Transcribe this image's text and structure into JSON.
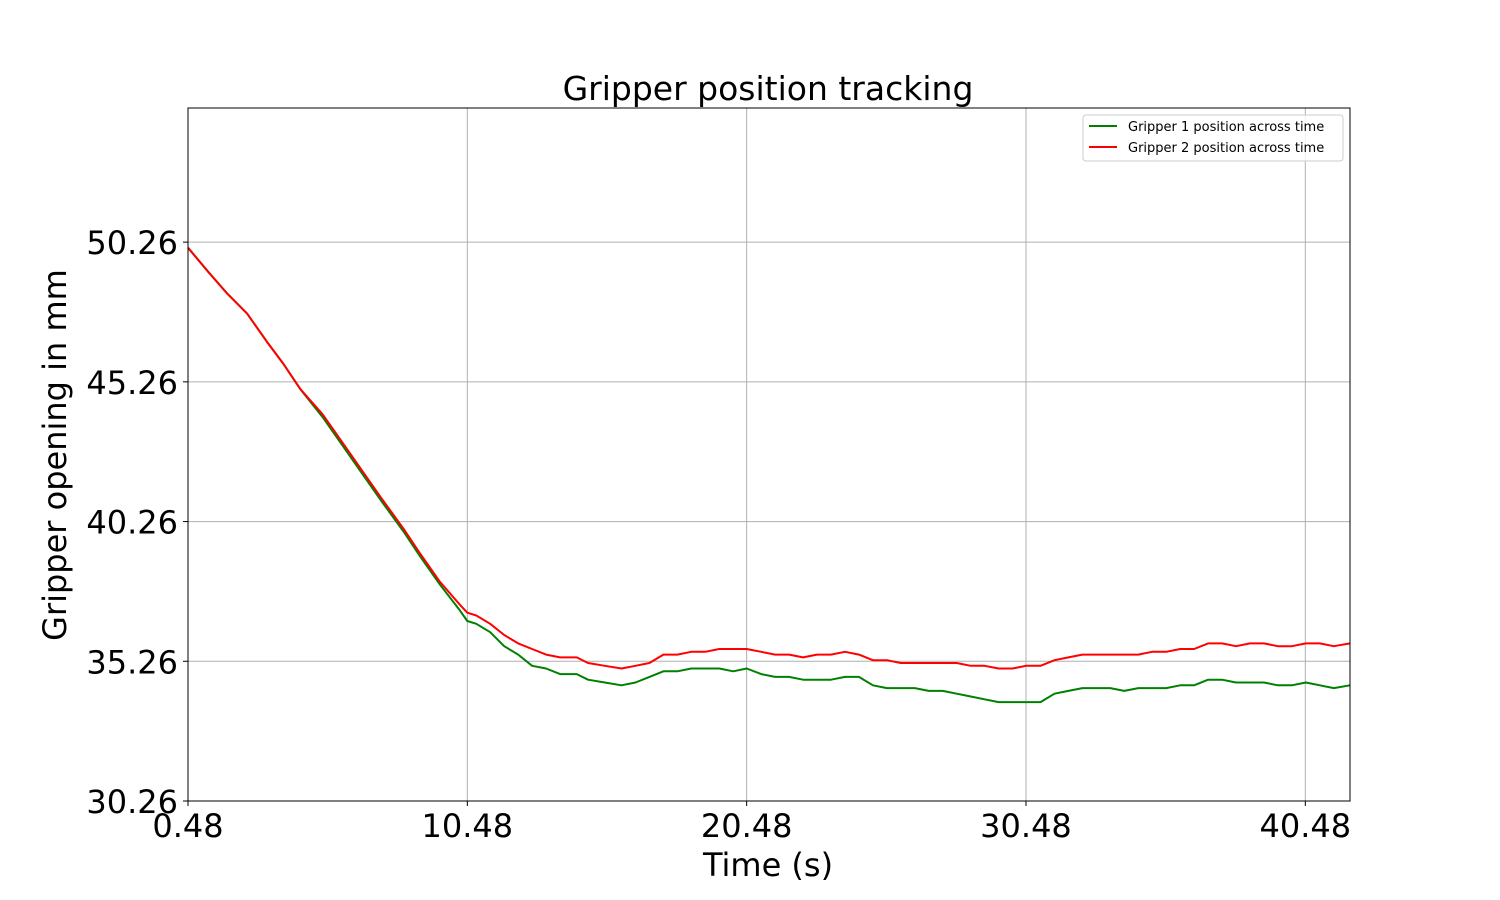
{
  "chart_data": {
    "type": "line",
    "title": "Gripper position tracking",
    "xlabel": "Time (s)",
    "ylabel": "Gripper opening in mm",
    "xlim": [
      0.48,
      42.08
    ],
    "ylim": [
      30.26,
      55.06
    ],
    "xticks": [
      0.48,
      10.48,
      20.48,
      30.48,
      40.48
    ],
    "xtick_labels": [
      "0.48",
      "10.48",
      "20.48",
      "30.48",
      "40.48"
    ],
    "yticks": [
      30.26,
      35.26,
      40.26,
      45.26,
      50.26
    ],
    "ytick_labels": [
      "30.26",
      "35.26",
      "40.26",
      "45.26",
      "50.26"
    ],
    "grid": true,
    "legend_position": "top-right",
    "series": [
      {
        "name": "Gripper 1 position across time",
        "color": "#008000",
        "x": [
          0.48,
          1.2,
          1.9,
          2.6,
          3.3,
          3.9,
          4.5,
          5.3,
          6.0,
          6.7,
          7.4,
          8.2,
          8.8,
          9.5,
          10.2,
          10.48,
          10.8,
          11.3,
          11.8,
          12.3,
          12.8,
          13.3,
          13.8,
          14.4,
          14.8,
          15.4,
          16.0,
          16.5,
          17.0,
          17.5,
          18.0,
          18.5,
          19.0,
          19.5,
          20.0,
          20.48,
          21.0,
          21.5,
          22.0,
          22.5,
          23.0,
          23.5,
          24.0,
          24.5,
          25.0,
          25.5,
          26.0,
          26.5,
          27.0,
          27.5,
          28.0,
          28.5,
          29.0,
          29.5,
          30.0,
          30.48,
          31.0,
          31.5,
          32.0,
          32.5,
          33.0,
          33.5,
          34.0,
          34.5,
          35.0,
          35.5,
          36.0,
          36.5,
          37.0,
          37.5,
          38.0,
          38.5,
          39.0,
          39.5,
          40.0,
          40.5,
          41.0,
          41.5,
          42.08
        ],
        "values": [
          50.06,
          49.2,
          48.4,
          47.7,
          46.7,
          45.9,
          45.0,
          44.0,
          43.0,
          42.0,
          41.0,
          39.9,
          39.0,
          38.0,
          37.1,
          36.7,
          36.6,
          36.3,
          35.8,
          35.5,
          35.1,
          35.0,
          34.8,
          34.8,
          34.6,
          34.5,
          34.4,
          34.5,
          34.7,
          34.9,
          34.9,
          35.0,
          35.0,
          35.0,
          34.9,
          35.0,
          34.8,
          34.7,
          34.7,
          34.6,
          34.6,
          34.6,
          34.7,
          34.7,
          34.4,
          34.3,
          34.3,
          34.3,
          34.2,
          34.2,
          34.1,
          34.0,
          33.9,
          33.8,
          33.8,
          33.8,
          33.8,
          34.1,
          34.2,
          34.3,
          34.3,
          34.3,
          34.2,
          34.3,
          34.3,
          34.3,
          34.4,
          34.4,
          34.6,
          34.6,
          34.5,
          34.5,
          34.5,
          34.4,
          34.4,
          34.5,
          34.4,
          34.3,
          34.4
        ]
      },
      {
        "name": "Gripper 2 position across time",
        "color": "#ff0000",
        "x": [
          0.48,
          1.2,
          1.9,
          2.6,
          3.3,
          3.9,
          4.5,
          5.3,
          6.0,
          6.7,
          7.4,
          8.2,
          8.8,
          9.5,
          10.2,
          10.48,
          10.8,
          11.3,
          11.8,
          12.3,
          12.8,
          13.3,
          13.8,
          14.4,
          14.8,
          15.4,
          16.0,
          16.5,
          17.0,
          17.5,
          18.0,
          18.5,
          19.0,
          19.5,
          20.0,
          20.48,
          21.0,
          21.5,
          22.0,
          22.5,
          23.0,
          23.5,
          24.0,
          24.5,
          25.0,
          25.5,
          26.0,
          26.5,
          27.0,
          27.5,
          28.0,
          28.5,
          29.0,
          29.5,
          30.0,
          30.48,
          31.0,
          31.5,
          32.0,
          32.5,
          33.0,
          33.5,
          34.0,
          34.5,
          35.0,
          35.5,
          36.0,
          36.5,
          37.0,
          37.5,
          38.0,
          38.5,
          39.0,
          39.5,
          40.0,
          40.5,
          41.0,
          41.5,
          42.08
        ],
        "values": [
          50.06,
          49.2,
          48.4,
          47.7,
          46.7,
          45.9,
          45.0,
          44.1,
          43.1,
          42.1,
          41.1,
          40.0,
          39.1,
          38.1,
          37.3,
          37.0,
          36.9,
          36.6,
          36.2,
          35.9,
          35.7,
          35.5,
          35.4,
          35.4,
          35.2,
          35.1,
          35.0,
          35.1,
          35.2,
          35.5,
          35.5,
          35.6,
          35.6,
          35.7,
          35.7,
          35.7,
          35.6,
          35.5,
          35.5,
          35.4,
          35.5,
          35.5,
          35.6,
          35.5,
          35.3,
          35.3,
          35.2,
          35.2,
          35.2,
          35.2,
          35.2,
          35.1,
          35.1,
          35.0,
          35.0,
          35.1,
          35.1,
          35.3,
          35.4,
          35.5,
          35.5,
          35.5,
          35.5,
          35.5,
          35.6,
          35.6,
          35.7,
          35.7,
          35.9,
          35.9,
          35.8,
          35.9,
          35.9,
          35.8,
          35.8,
          35.9,
          35.9,
          35.8,
          35.9
        ]
      }
    ]
  }
}
